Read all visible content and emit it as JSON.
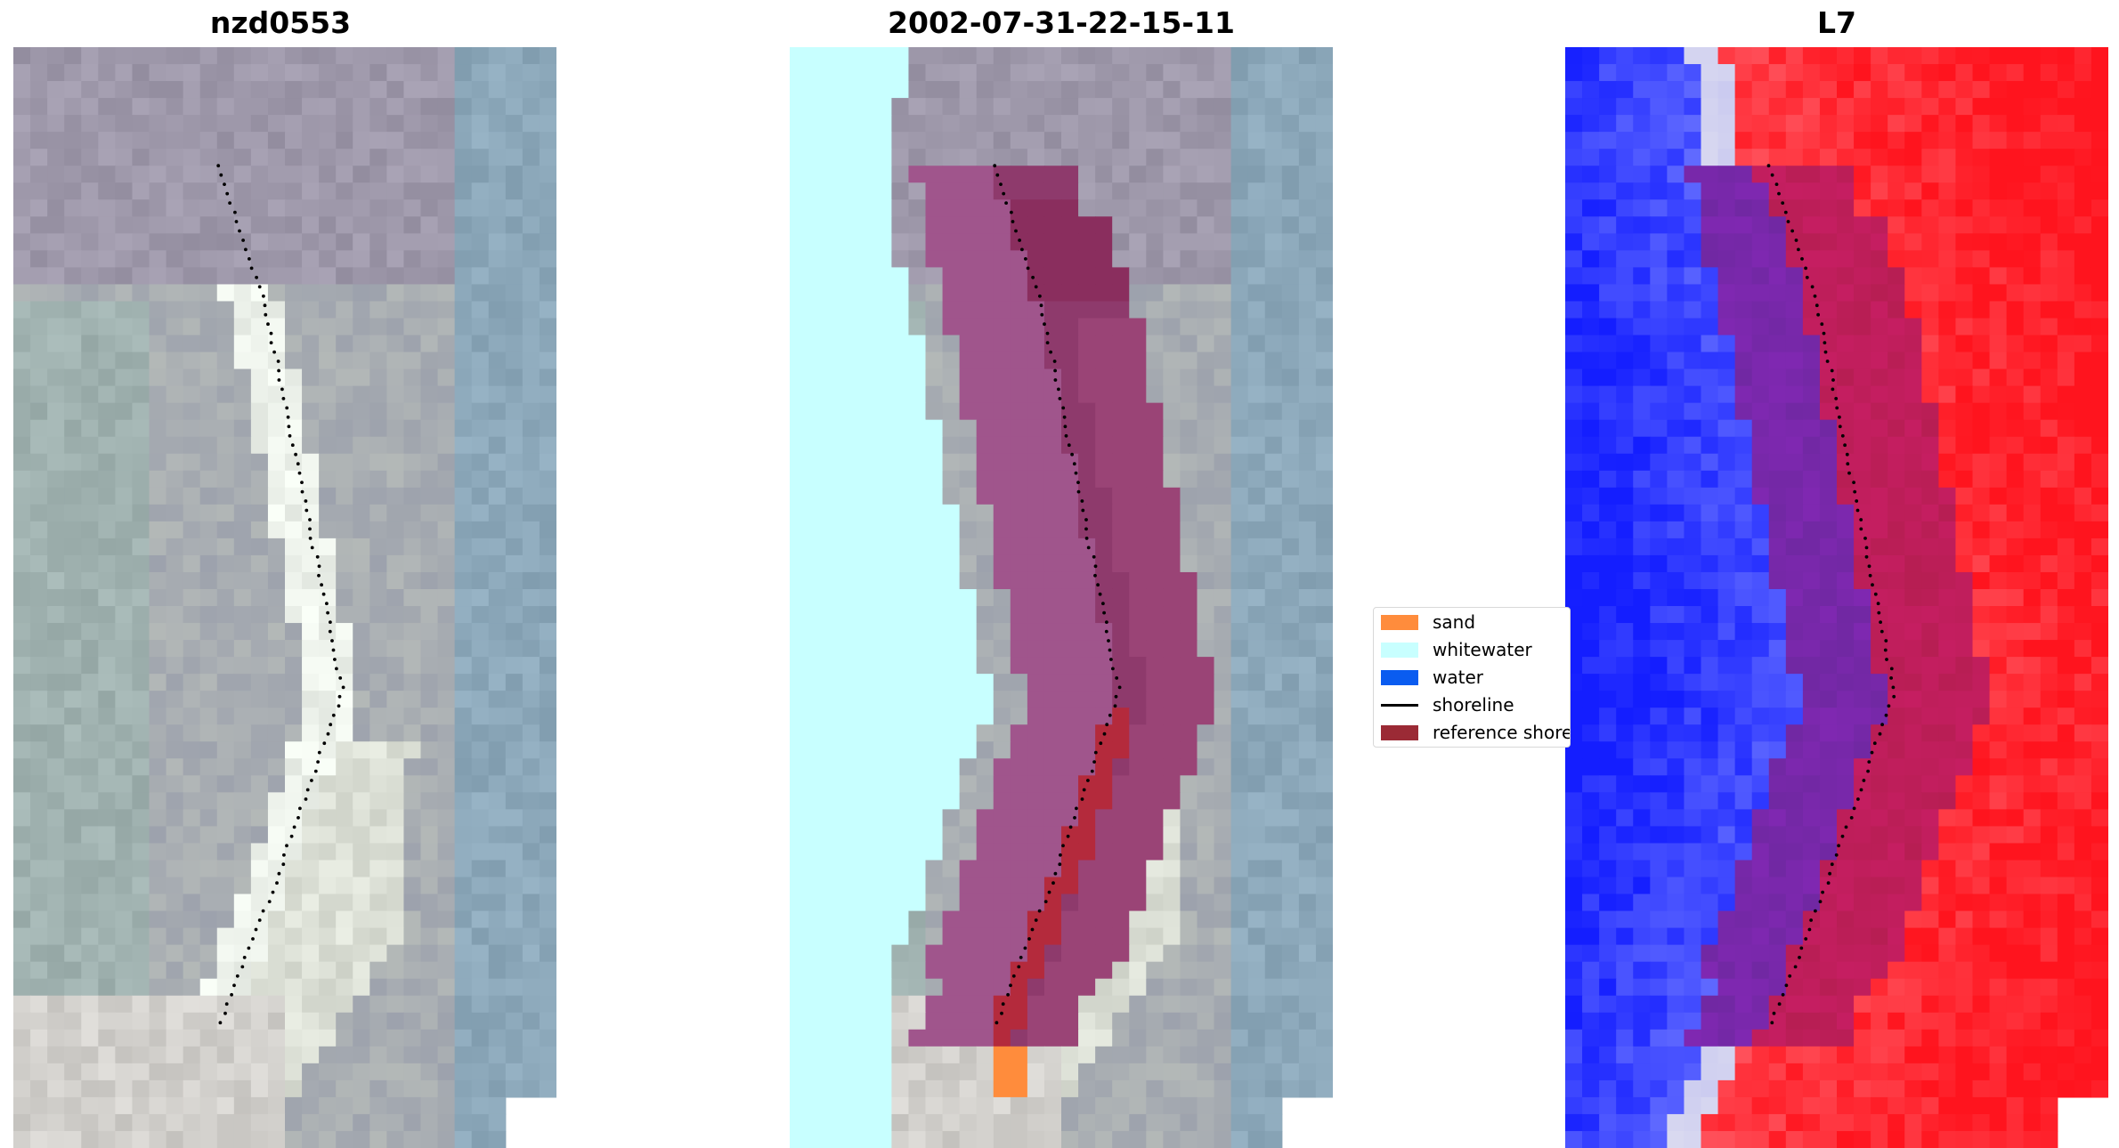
{
  "panels": [
    {
      "title": "nzd0553",
      "kind": "rgb"
    },
    {
      "title": "2002-07-31-22-15-11",
      "kind": "classified"
    },
    {
      "title": "L7",
      "kind": "index"
    }
  ],
  "legend": {
    "items": [
      {
        "label": "sand",
        "type": "patch",
        "color": "#ff8c3c"
      },
      {
        "label": "whitewater",
        "type": "patch",
        "color": "#c8ffff"
      },
      {
        "label": "water",
        "type": "patch",
        "color": "#0a5cf0"
      },
      {
        "label": "shoreline",
        "type": "line",
        "color": "#000000"
      },
      {
        "label": "reference shoreline buffer",
        "type": "patch",
        "color": "#9b2a35"
      }
    ]
  },
  "colors": {
    "rgb_base": "#a8adb4",
    "beach_bright": "#f2f2ee",
    "whitewater": "#c8ffff",
    "buffer": "#a0558c",
    "buffer_dark": "#8e2f60",
    "reference": "#b42a3c",
    "sand": "#ff8c3c",
    "water_blue": "#2020ff",
    "land_red": "#ff2020",
    "overlay_purple": "#7020a0"
  }
}
